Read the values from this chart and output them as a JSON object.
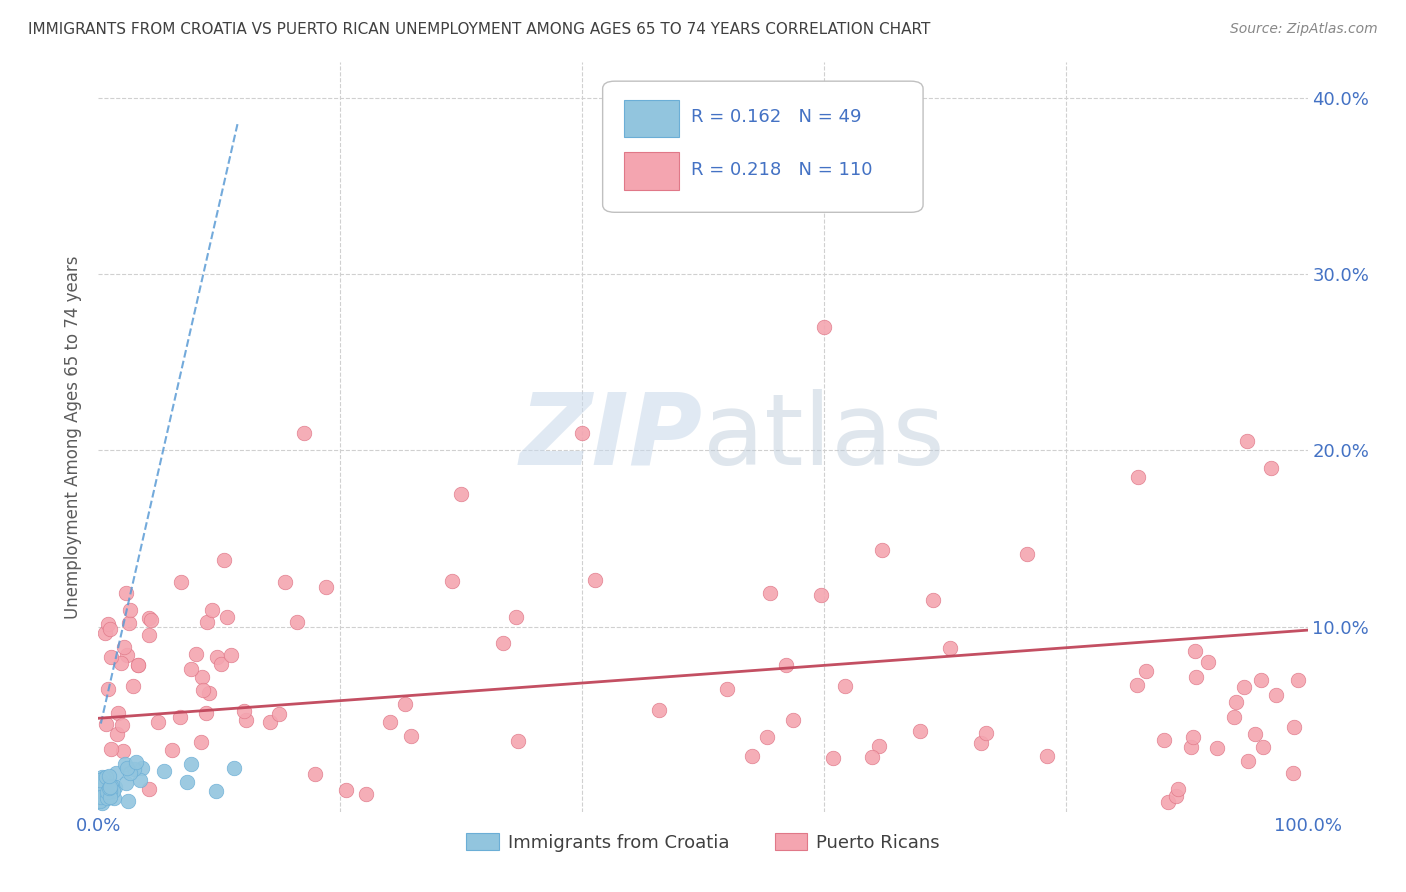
{
  "title": "IMMIGRANTS FROM CROATIA VS PUERTO RICAN UNEMPLOYMENT AMONG AGES 65 TO 74 YEARS CORRELATION CHART",
  "source": "Source: ZipAtlas.com",
  "ylabel": "Unemployment Among Ages 65 to 74 years",
  "xlim": [
    0.0,
    1.0
  ],
  "ylim": [
    -0.005,
    0.42
  ],
  "yticks": [
    0.0,
    0.1,
    0.2,
    0.3,
    0.4
  ],
  "legend_blue_R": "0.162",
  "legend_blue_N": "49",
  "legend_pink_R": "0.218",
  "legend_pink_N": "110",
  "blue_color": "#92C5DE",
  "pink_color": "#F4A5B0",
  "trend_blue_color": "#5B9BD5",
  "trend_pink_color": "#C0455A",
  "watermark": "ZIPatlas",
  "watermark_color": "#C8D8E8",
  "title_color": "#404040",
  "axis_label_color": "#5B5B5B",
  "tick_label_color": "#4472C4",
  "blue_trend_x": [
    0.002,
    0.115
  ],
  "blue_trend_y": [
    0.045,
    0.385
  ],
  "pink_trend_x": [
    0.0,
    1.0
  ],
  "pink_trend_y": [
    0.048,
    0.098
  ]
}
